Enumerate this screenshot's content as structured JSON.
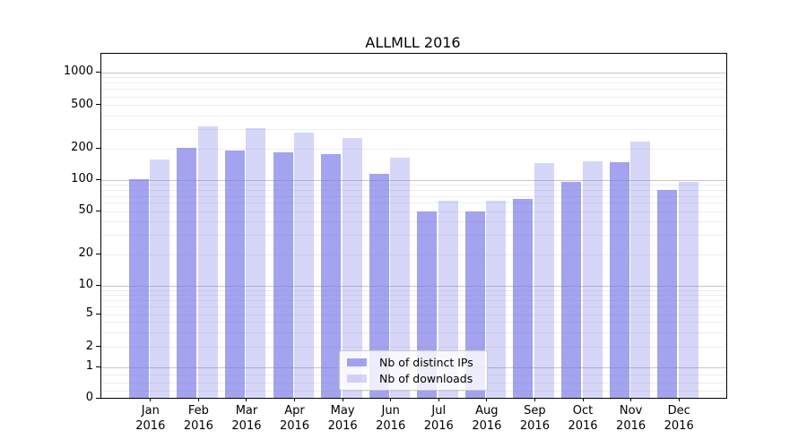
{
  "title": "ALLMLL 2016",
  "chart_data": {
    "type": "bar",
    "title": "ALLMLL 2016",
    "categories": [
      "Jan",
      "Feb",
      "Mar",
      "Apr",
      "May",
      "Jun",
      "Jul",
      "Aug",
      "Sep",
      "Oct",
      "Nov",
      "Dec"
    ],
    "x_year_suffix": "2016",
    "series": [
      {
        "name": "Nb of distinct IPs",
        "color": "rgba(120,120,232,0.68)",
        "values": [
          102,
          205,
          193,
          185,
          178,
          115,
          50,
          50,
          66,
          96,
          148,
          80
        ]
      },
      {
        "name": "Nb of downloads",
        "color": "rgba(120,120,232,0.30)",
        "values": [
          157,
          320,
          310,
          281,
          252,
          165,
          64,
          63,
          146,
          152,
          235,
          96
        ]
      }
    ],
    "yscale": "symlog",
    "ylim": [
      0,
      1400
    ],
    "ytick_values": [
      0,
      1,
      2,
      5,
      10,
      20,
      50,
      100,
      200,
      500,
      1000
    ],
    "ytick_labels": [
      "0",
      "1",
      "2",
      "5",
      "10",
      "20",
      "50",
      "100",
      "200",
      "500",
      "1000"
    ],
    "grid": true,
    "legend_position": "lower center"
  },
  "legend": {
    "items": [
      {
        "label": "Nb of distinct IPs",
        "color": "rgba(120,120,232,0.68)"
      },
      {
        "label": "Nb of downloads",
        "color": "rgba(120,120,232,0.30)"
      }
    ]
  },
  "colors": {
    "bar_base": "#7878e8",
    "major_grid": "#c6c6c6",
    "minor_grid": "#ededed",
    "axis": "#000000",
    "background": "#ffffff"
  }
}
